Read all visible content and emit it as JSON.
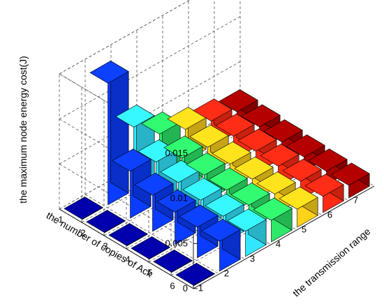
{
  "chart_data": {
    "type": "bar3d",
    "zlabel": "the maximum node energy cost(J)",
    "ylabel": "the number of copies of Ack",
    "xlabel": "the transmission range",
    "z_ticks": [
      "0",
      "0.005",
      "0.01",
      "0.015"
    ],
    "zlim": [
      0,
      0.015
    ],
    "x_categories": [
      "1",
      "2",
      "3",
      "4",
      "5",
      "6",
      "7"
    ],
    "y_categories": [
      "1",
      "2",
      "3",
      "4",
      "5",
      "6"
    ],
    "colors": [
      "#0000a0",
      "#0a3cff",
      "#33e6ff",
      "#2ee86a",
      "#ffd21a",
      "#ff2a14",
      "#a80000"
    ],
    "grid": true,
    "values": [
      [
        0.0,
        0.0135,
        0.007,
        0.0046,
        0.0035,
        0.0028,
        0.0022
      ],
      [
        0.0,
        0.0052,
        0.0046,
        0.0034,
        0.003,
        0.0026,
        0.002
      ],
      [
        0.0,
        0.004,
        0.0038,
        0.003,
        0.0026,
        0.0024,
        0.0018
      ],
      [
        0.0,
        0.0036,
        0.0033,
        0.0028,
        0.0024,
        0.0022,
        0.0016
      ],
      [
        0.0,
        0.0034,
        0.003,
        0.0026,
        0.0022,
        0.002,
        0.0015
      ],
      [
        0.0,
        0.0033,
        0.0028,
        0.0024,
        0.002,
        0.0018,
        0.0014
      ]
    ]
  }
}
